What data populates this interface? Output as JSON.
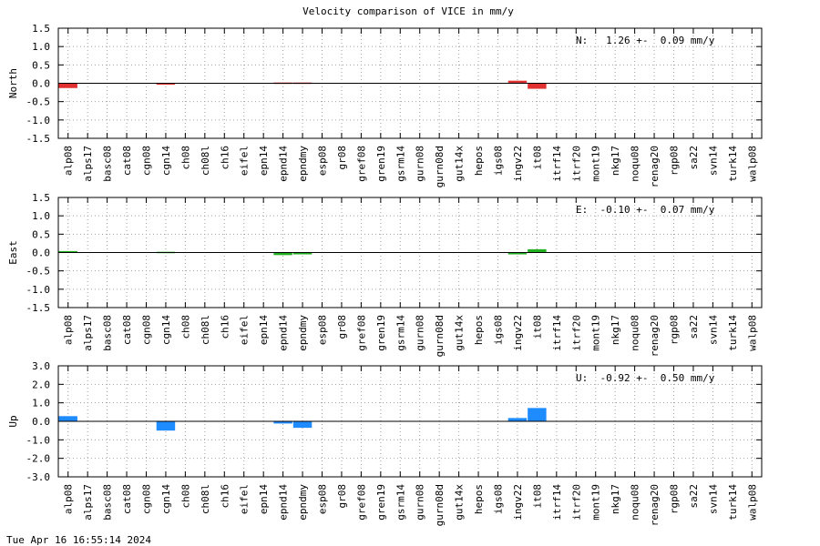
{
  "title": "Velocity comparison of VICE in mm/y",
  "footer": "Tue Apr 16 16:55:14 2024",
  "chart_data": {
    "type": "bar",
    "title": "Velocity comparison of VICE in mm/y",
    "categories": [
      "alp08",
      "alps17",
      "basc08",
      "cat08",
      "cgn08",
      "cgn14",
      "ch08",
      "ch08l",
      "ch16",
      "eifel",
      "epn14",
      "epnd14",
      "epndmy",
      "esp08",
      "gr08",
      "gref08",
      "gren19",
      "gsrm14",
      "gurn08",
      "gurn08d",
      "gut14x",
      "hepos",
      "igs08",
      "ingv22",
      "it08",
      "itrf14",
      "itrf20",
      "mont19",
      "nkg17",
      "noqu08",
      "renag20",
      "rgp08",
      "sa22",
      "svn14",
      "turk14",
      "walp08"
    ],
    "grid": true,
    "panels": [
      {
        "ylabel": "North",
        "stat": "N:   1.26 +-  0.09 mm/y",
        "color": "#e03030",
        "ylim": [
          -1.5,
          1.5
        ],
        "yticks": [
          "1.5",
          "1.0",
          "0.5",
          "0.0",
          "-0.5",
          "-1.0",
          "-1.5"
        ],
        "values": [
          -0.13,
          0,
          0,
          0,
          0,
          -0.04,
          0,
          0,
          0,
          0,
          0,
          0.02,
          0.02,
          0,
          0,
          0,
          0,
          0,
          0,
          0,
          0,
          0,
          0,
          0.07,
          -0.15,
          0,
          0,
          0,
          0,
          0,
          0,
          0,
          0,
          0,
          0,
          0
        ]
      },
      {
        "ylabel": "East",
        "stat": "E:  -0.10 +-  0.07 mm/y",
        "color": "#20b020",
        "ylim": [
          -1.5,
          1.5
        ],
        "yticks": [
          "1.5",
          "1.0",
          "0.5",
          "0.0",
          "-0.5",
          "-1.0",
          "-1.5"
        ],
        "values": [
          0.04,
          0,
          0,
          0,
          0,
          0.02,
          0,
          0,
          0,
          0,
          0,
          -0.07,
          -0.05,
          0,
          0,
          0,
          0,
          0,
          0,
          0,
          0,
          0,
          0,
          -0.05,
          0.09,
          0,
          0,
          0,
          0,
          0,
          0,
          0,
          0,
          0,
          0,
          0
        ]
      },
      {
        "ylabel": "Up",
        "stat": "U:  -0.92 +-  0.50 mm/y",
        "color": "#1e8cff",
        "ylim": [
          -3.0,
          3.0
        ],
        "yticks": [
          "3.0",
          "2.0",
          "1.0",
          "0.0",
          "-1.0",
          "-2.0",
          "-3.0"
        ],
        "values": [
          0.28,
          0,
          0,
          0,
          0,
          -0.5,
          0,
          0,
          0,
          0,
          0,
          -0.12,
          -0.35,
          0,
          0,
          0,
          0,
          0,
          0,
          0,
          0,
          0,
          0,
          0.18,
          0.72,
          0,
          0,
          0,
          0,
          0,
          0,
          0,
          0,
          0,
          0,
          0
        ]
      }
    ]
  }
}
